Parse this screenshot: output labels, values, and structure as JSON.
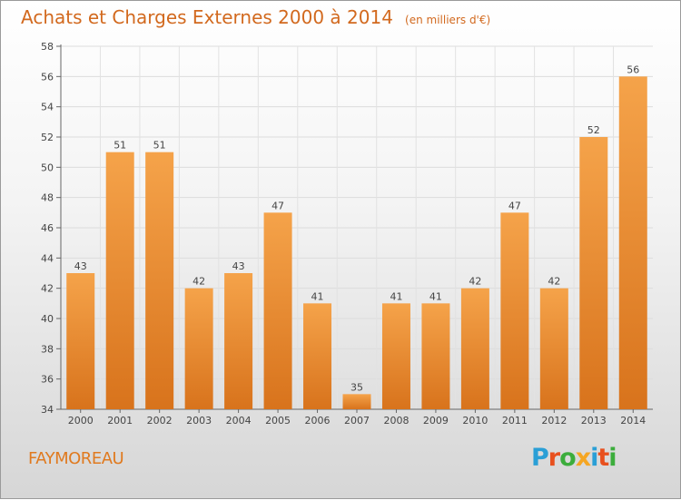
{
  "header": {
    "title": "Achats et Charges Externes 2000 à 2014",
    "subtitle": "(en milliers d'€)"
  },
  "footer": {
    "commune": "FAYMOREAU",
    "logo_text": "Proxiti",
    "logo_colors": [
      "#2a9fd6",
      "#e8501e",
      "#3cad3c",
      "#f5a623",
      "#2a9fd6",
      "#e8501e",
      "#3cad3c"
    ]
  },
  "chart_data": {
    "type": "bar",
    "title": "Achats et Charges Externes 2000 à 2014",
    "subtitle": "(en milliers d'€)",
    "xlabel": "",
    "ylabel": "",
    "categories": [
      "2000",
      "2001",
      "2002",
      "2003",
      "2004",
      "2005",
      "2006",
      "2007",
      "2008",
      "2009",
      "2010",
      "2011",
      "2012",
      "2013",
      "2014"
    ],
    "values": [
      43,
      51,
      51,
      42,
      43,
      47,
      41,
      35,
      41,
      41,
      42,
      47,
      42,
      52,
      56
    ],
    "ylim": [
      34,
      58
    ],
    "yticks": [
      34,
      36,
      38,
      40,
      42,
      44,
      46,
      48,
      50,
      52,
      54,
      56,
      58
    ],
    "grid": true,
    "bar_color_top": "#f5a34a",
    "bar_color_bottom": "#d8731c",
    "text_color": "#d2691e"
  }
}
